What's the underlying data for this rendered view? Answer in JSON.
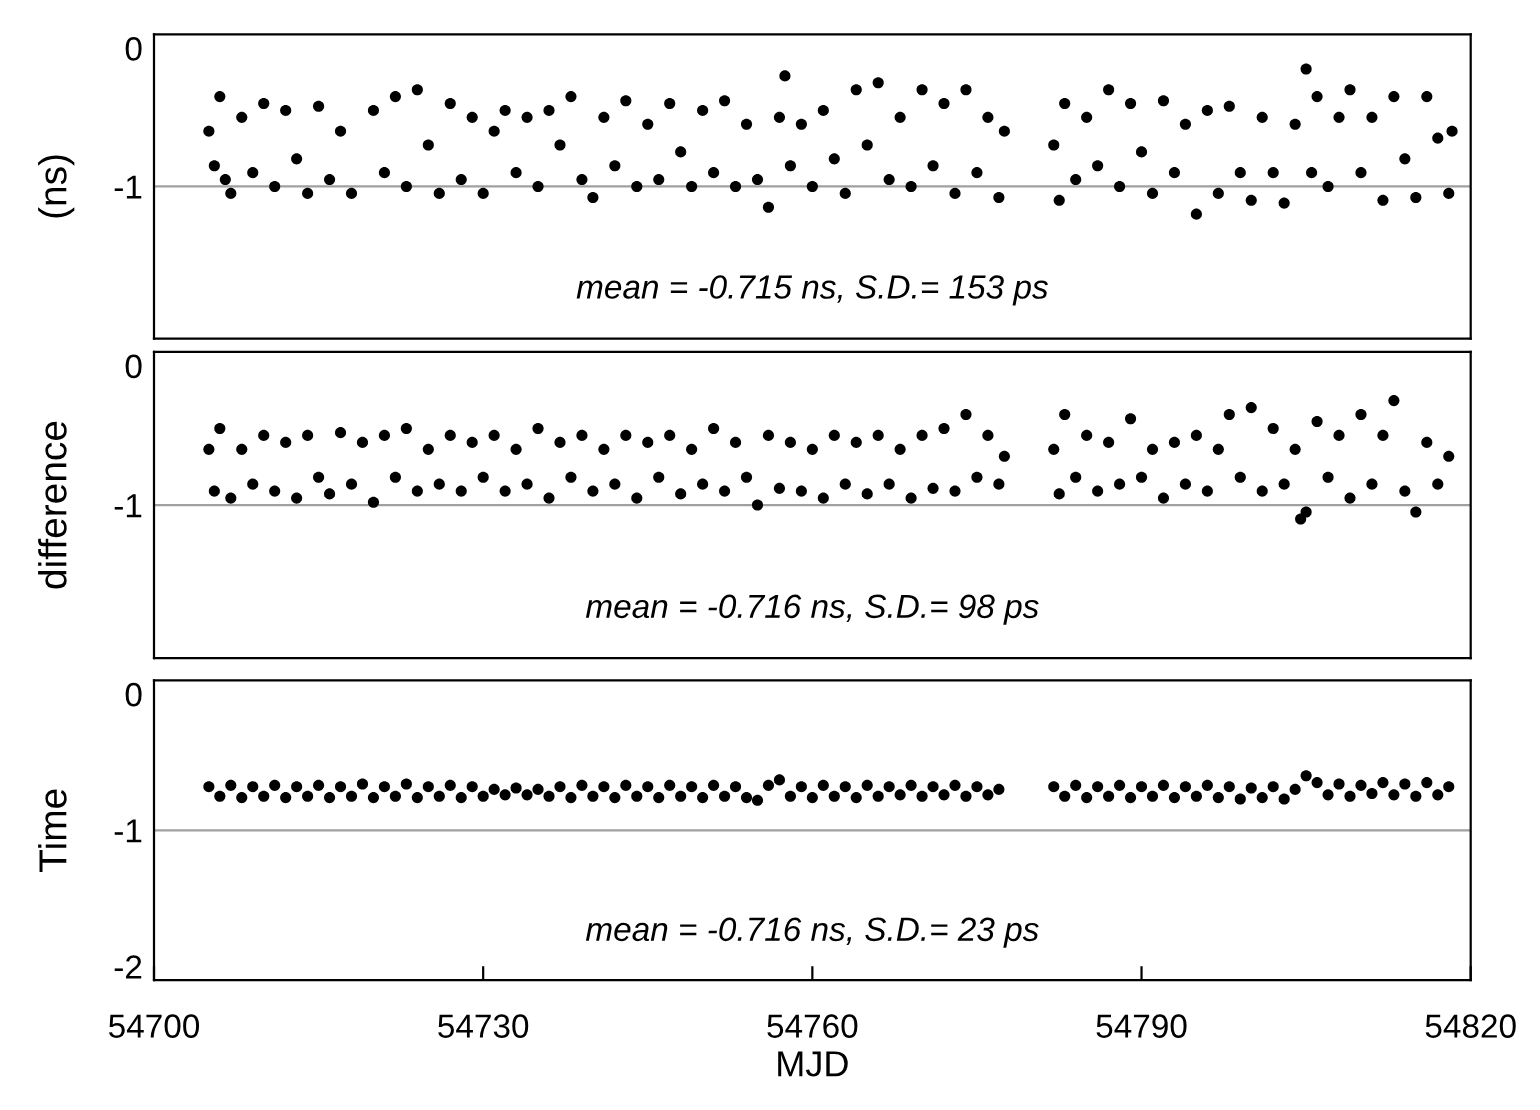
{
  "chart_data": [
    {
      "type": "scatter",
      "ylabel": "(ns)",
      "annotations": [
        "mean = -0.715 ns, S.D.= 153 ps"
      ],
      "xlim": [
        54700,
        54820
      ],
      "xticks": [
        54700,
        54730,
        54760,
        54790,
        54820
      ],
      "ylim": [
        -2.1,
        0.1
      ],
      "yticks": [
        -1,
        0
      ],
      "tick_labels": "y",
      "marker": "circle",
      "grid": false,
      "ref_lines": [
        {
          "axis": "y",
          "value": -1,
          "color": "#a0a0a0"
        }
      ],
      "x": [
        54705,
        54705.5,
        54706,
        54706.5,
        54707,
        54708,
        54709,
        54710,
        54711,
        54712,
        54713,
        54714,
        54715,
        54716,
        54717,
        54718,
        54720,
        54721,
        54722,
        54723,
        54724,
        54725,
        54726,
        54727,
        54728,
        54729,
        54730,
        54731,
        54732,
        54733,
        54734,
        54735,
        54736,
        54737,
        54738,
        54739,
        54740,
        54741,
        54742,
        54743,
        54744,
        54745,
        54746,
        54747,
        54748,
        54749,
        54750,
        54751,
        54752,
        54753,
        54754,
        54755,
        54756,
        54757,
        54757.5,
        54758,
        54759,
        54760,
        54761,
        54762,
        54763,
        54764,
        54765,
        54766,
        54767,
        54768,
        54769,
        54770,
        54771,
        54772,
        54773,
        54774,
        54775,
        54776,
        54777,
        54777.5,
        54782,
        54782.5,
        54783,
        54784,
        54785,
        54786,
        54787,
        54788,
        54789,
        54790,
        54791,
        54792,
        54793,
        54794,
        54795,
        54796,
        54797,
        54798,
        54799,
        54800,
        54801,
        54802,
        54803,
        54804,
        54805,
        54805.5,
        54806,
        54807,
        54808,
        54809,
        54810,
        54811,
        54812,
        54813,
        54814,
        54815,
        54816,
        54817,
        54818,
        54818.3
      ],
      "series": [
        {
          "color": "#000000",
          "values": [
            -0.6,
            -0.85,
            -0.35,
            -0.95,
            -1.05,
            -0.5,
            -0.9,
            -0.4,
            -1.0,
            -0.45,
            -0.8,
            -1.05,
            -0.42,
            -0.95,
            -0.6,
            -1.05,
            -0.45,
            -0.9,
            -0.35,
            -1.0,
            -0.3,
            -0.7,
            -1.05,
            -0.4,
            -0.95,
            -0.5,
            -1.05,
            -0.6,
            -0.45,
            -0.9,
            -0.5,
            -1.0,
            -0.45,
            -0.7,
            -0.35,
            -0.95,
            -1.08,
            -0.5,
            -0.85,
            -0.38,
            -1.0,
            -0.55,
            -0.95,
            -0.4,
            -0.75,
            -1.0,
            -0.45,
            -0.9,
            -0.38,
            -1.0,
            -0.55,
            -0.95,
            -1.15,
            -0.5,
            -0.2,
            -0.85,
            -0.55,
            -1.0,
            -0.45,
            -0.8,
            -1.05,
            -0.3,
            -0.7,
            -0.25,
            -0.95,
            -0.5,
            -1.0,
            -0.3,
            -0.85,
            -0.4,
            -1.05,
            -0.3,
            -0.9,
            -0.5,
            -1.08,
            -0.6,
            -0.7,
            -1.1,
            -0.4,
            -0.95,
            -0.5,
            -0.85,
            -0.3,
            -1.0,
            -0.4,
            -0.75,
            -1.05,
            -0.38,
            -0.9,
            -0.55,
            -1.2,
            -0.45,
            -1.05,
            -0.42,
            -0.9,
            -1.1,
            -0.5,
            -0.9,
            -1.12,
            -0.55,
            -0.15,
            -0.9,
            -0.35,
            -1.0,
            -0.5,
            -0.3,
            -0.9,
            -0.5,
            -1.1,
            -0.35,
            -0.8,
            -1.08,
            -0.35,
            -0.65,
            -1.05,
            -0.6
          ]
        }
      ]
    },
    {
      "type": "scatter",
      "ylabel": "difference",
      "annotations": [
        "mean = -0.716 ns, S.D.= 98 ps"
      ],
      "xlim": [
        54700,
        54820
      ],
      "xticks": [
        54700,
        54730,
        54760,
        54790,
        54820
      ],
      "ylim": [
        -2.1,
        0.1
      ],
      "yticks": [
        -1,
        0
      ],
      "tick_labels": "y",
      "marker": "circle",
      "grid": false,
      "ref_lines": [
        {
          "axis": "y",
          "value": -1,
          "color": "#a0a0a0"
        }
      ],
      "x": [
        54705,
        54705.5,
        54706,
        54707,
        54708,
        54709,
        54710,
        54711,
        54712,
        54713,
        54714,
        54715,
        54716,
        54717,
        54718,
        54719,
        54720,
        54721,
        54722,
        54723,
        54724,
        54725,
        54726,
        54727,
        54728,
        54729,
        54730,
        54731,
        54732,
        54733,
        54734,
        54735,
        54736,
        54737,
        54738,
        54739,
        54740,
        54741,
        54742,
        54743,
        54744,
        54745,
        54746,
        54747,
        54748,
        54749,
        54750,
        54751,
        54752,
        54753,
        54754,
        54755,
        54756,
        54757,
        54758,
        54759,
        54760,
        54761,
        54762,
        54763,
        54764,
        54765,
        54766,
        54767,
        54768,
        54769,
        54770,
        54771,
        54772,
        54773,
        54774,
        54775,
        54776,
        54777,
        54777.5,
        54782,
        54782.5,
        54783,
        54784,
        54785,
        54786,
        54787,
        54788,
        54789,
        54790,
        54791,
        54792,
        54793,
        54794,
        54795,
        54796,
        54797,
        54798,
        54799,
        54800,
        54801,
        54802,
        54803,
        54804,
        54804.5,
        54805,
        54806,
        54807,
        54808,
        54809,
        54810,
        54811,
        54812,
        54813,
        54814,
        54815,
        54816,
        54817,
        54818
      ],
      "series": [
        {
          "color": "#000000",
          "values": [
            -0.6,
            -0.9,
            -0.45,
            -0.95,
            -0.6,
            -0.85,
            -0.5,
            -0.9,
            -0.55,
            -0.95,
            -0.5,
            -0.8,
            -0.92,
            -0.48,
            -0.85,
            -0.55,
            -0.98,
            -0.5,
            -0.8,
            -0.45,
            -0.9,
            -0.6,
            -0.85,
            -0.5,
            -0.9,
            -0.55,
            -0.8,
            -0.5,
            -0.9,
            -0.6,
            -0.85,
            -0.45,
            -0.95,
            -0.55,
            -0.8,
            -0.5,
            -0.9,
            -0.6,
            -0.85,
            -0.5,
            -0.95,
            -0.55,
            -0.8,
            -0.5,
            -0.92,
            -0.6,
            -0.85,
            -0.45,
            -0.9,
            -0.55,
            -0.8,
            -1.0,
            -0.5,
            -0.88,
            -0.55,
            -0.9,
            -0.6,
            -0.95,
            -0.5,
            -0.85,
            -0.55,
            -0.92,
            -0.5,
            -0.85,
            -0.6,
            -0.95,
            -0.5,
            -0.88,
            -0.45,
            -0.9,
            -0.35,
            -0.8,
            -0.5,
            -0.85,
            -0.65,
            -0.6,
            -0.92,
            -0.35,
            -0.8,
            -0.5,
            -0.9,
            -0.55,
            -0.85,
            -0.38,
            -0.8,
            -0.6,
            -0.95,
            -0.55,
            -0.85,
            -0.5,
            -0.9,
            -0.6,
            -0.35,
            -0.8,
            -0.3,
            -0.9,
            -0.45,
            -0.85,
            -0.6,
            -1.1,
            -1.05,
            -0.4,
            -0.8,
            -0.5,
            -0.95,
            -0.35,
            -0.85,
            -0.5,
            -0.25,
            -0.9,
            -1.05,
            -0.55,
            -0.85,
            -0.65
          ]
        }
      ]
    },
    {
      "type": "scatter",
      "ylabel": "Time",
      "xlabel": "MJD",
      "annotations": [
        "mean = -0.716 ns, S.D.= 23 ps"
      ],
      "xlim": [
        54700,
        54820
      ],
      "xticks": [
        54700,
        54730,
        54760,
        54790,
        54820
      ],
      "ylim": [
        -2.1,
        0.1
      ],
      "yticks": [
        -2,
        -1,
        0
      ],
      "marker": "circle",
      "grid": false,
      "ref_lines": [
        {
          "axis": "y",
          "value": -1,
          "color": "#a0a0a0"
        }
      ],
      "x": [
        54705,
        54706,
        54707,
        54708,
        54709,
        54710,
        54711,
        54712,
        54713,
        54714,
        54715,
        54716,
        54717,
        54718,
        54719,
        54720,
        54721,
        54722,
        54723,
        54724,
        54725,
        54726,
        54727,
        54728,
        54729,
        54730,
        54731,
        54732,
        54733,
        54734,
        54735,
        54736,
        54737,
        54738,
        54739,
        54740,
        54741,
        54742,
        54743,
        54744,
        54745,
        54746,
        54747,
        54748,
        54749,
        54750,
        54751,
        54752,
        54753,
        54754,
        54755,
        54756,
        54757,
        54758,
        54759,
        54760,
        54761,
        54762,
        54763,
        54764,
        54765,
        54766,
        54767,
        54768,
        54769,
        54770,
        54771,
        54772,
        54773,
        54774,
        54775,
        54776,
        54777,
        54782,
        54783,
        54784,
        54785,
        54786,
        54787,
        54788,
        54789,
        54790,
        54791,
        54792,
        54793,
        54794,
        54795,
        54796,
        54797,
        54798,
        54799,
        54800,
        54801,
        54802,
        54803,
        54804,
        54805,
        54806,
        54807,
        54808,
        54809,
        54810,
        54811,
        54812,
        54813,
        54814,
        54815,
        54816,
        54817,
        54818
      ],
      "series": [
        {
          "color": "#000000",
          "values": [
            -0.68,
            -0.75,
            -0.67,
            -0.76,
            -0.68,
            -0.75,
            -0.67,
            -0.76,
            -0.68,
            -0.75,
            -0.67,
            -0.76,
            -0.68,
            -0.75,
            -0.66,
            -0.76,
            -0.68,
            -0.75,
            -0.66,
            -0.76,
            -0.68,
            -0.75,
            -0.67,
            -0.76,
            -0.68,
            -0.75,
            -0.7,
            -0.74,
            -0.69,
            -0.74,
            -0.7,
            -0.75,
            -0.68,
            -0.76,
            -0.67,
            -0.75,
            -0.68,
            -0.76,
            -0.67,
            -0.75,
            -0.68,
            -0.76,
            -0.67,
            -0.75,
            -0.68,
            -0.76,
            -0.67,
            -0.75,
            -0.68,
            -0.76,
            -0.78,
            -0.67,
            -0.63,
            -0.75,
            -0.68,
            -0.76,
            -0.67,
            -0.75,
            -0.68,
            -0.76,
            -0.67,
            -0.75,
            -0.68,
            -0.74,
            -0.67,
            -0.75,
            -0.68,
            -0.74,
            -0.67,
            -0.75,
            -0.68,
            -0.74,
            -0.7,
            -0.68,
            -0.75,
            -0.67,
            -0.76,
            -0.68,
            -0.75,
            -0.67,
            -0.76,
            -0.68,
            -0.75,
            -0.67,
            -0.76,
            -0.68,
            -0.75,
            -0.67,
            -0.76,
            -0.68,
            -0.77,
            -0.69,
            -0.76,
            -0.68,
            -0.77,
            -0.7,
            -0.6,
            -0.65,
            -0.74,
            -0.66,
            -0.75,
            -0.67,
            -0.73,
            -0.65,
            -0.74,
            -0.66,
            -0.75,
            -0.65,
            -0.74,
            -0.68
          ]
        }
      ]
    }
  ]
}
